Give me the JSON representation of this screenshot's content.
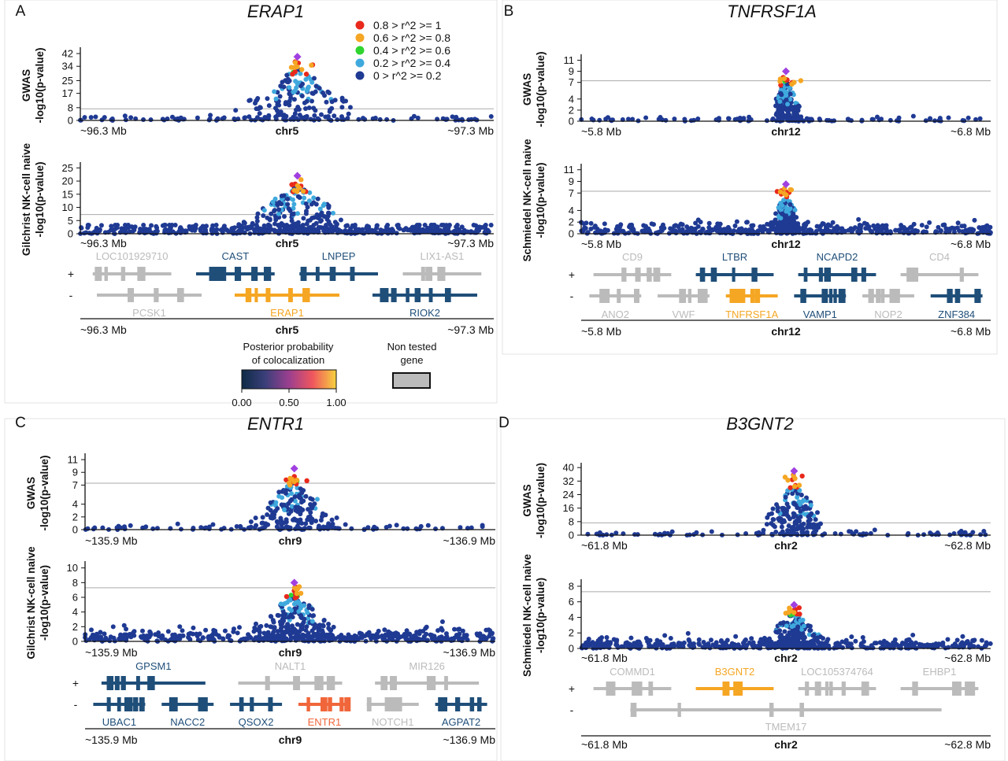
{
  "colors": {
    "r08_1": "#e8291b",
    "r06_08": "#f5a623",
    "r04_06": "#2fd42f",
    "r02_04": "#3fa9dd",
    "r0_02": "#1f3a93",
    "lead": "#a040e0",
    "tested_gene": "#1f4e79",
    "non_tested_gene": "#bbbbbb",
    "colocalized_gene": "#f5a623",
    "entr1_gene": "#f0663a",
    "threshold": "#aaaaaa"
  },
  "legend": {
    "items": [
      {
        "label": "0.8 > r^2  >= 1",
        "color": "#e8291b"
      },
      {
        "label": "0.6 > r^2  >= 0.8",
        "color": "#f5a623"
      },
      {
        "label": "0.4 > r^2  >= 0.6",
        "color": "#2fd42f"
      },
      {
        "label": "0.2 > r^2  >= 0.4",
        "color": "#3fa9dd"
      },
      {
        "label": "0 > r^2  >= 0.2",
        "color": "#1f3a93"
      }
    ],
    "colorbar_title_1": "Posterior probability",
    "colorbar_title_2": "of colocalization",
    "colorbar_ticks": [
      "0.00",
      "0.50",
      "1.00"
    ],
    "non_tested_1": "Non tested",
    "non_tested_2": "gene"
  },
  "chart_data": [
    {
      "panel": "A",
      "title": "ERAP1",
      "type": "scatter",
      "chrom": "chr5",
      "x_left": "~96.3 Mb",
      "x_right": "~97.3 Mb",
      "tracks": [
        {
          "ylabel_1": "GWAS",
          "ylabel_2": "-log10(p-value)",
          "yticks": [
            0,
            8,
            17,
            25,
            34,
            42
          ],
          "ymax": 44,
          "threshold": 7.3,
          "peak": 40,
          "lead_color": "#a040e0"
        },
        {
          "ylabel_1": "Gilchrist NK-cell naive",
          "ylabel_2": "-log10(p-value)",
          "yticks": [
            0,
            5,
            10,
            15,
            20,
            25
          ],
          "ymax": 26,
          "threshold": 7.3,
          "peak": 22
        }
      ],
      "genes_plus_labels": [
        {
          "text": "LOC101929710",
          "tested": false
        },
        {
          "text": "CAST",
          "tested": true
        },
        {
          "text": "LNPEP",
          "tested": true
        },
        {
          "text": "LIX1-AS1",
          "tested": false
        }
      ],
      "genes_minus_labels": [
        {
          "text": "PCSK1",
          "tested": false
        },
        {
          "text": "ERAP1",
          "tested": true,
          "coloc": true
        },
        {
          "text": "RIOK2",
          "tested": true
        }
      ]
    },
    {
      "panel": "B",
      "title": "TNFRSF1A",
      "type": "scatter",
      "chrom": "chr12",
      "x_left": "~5.8 Mb",
      "x_right": "~6.8 Mb",
      "tracks": [
        {
          "ylabel_1": "GWAS",
          "ylabel_2": "-log10(p-value)",
          "yticks": [
            0,
            2,
            4,
            7,
            9,
            11
          ],
          "ymax": 11.5,
          "threshold": 7.3,
          "peak": 9
        },
        {
          "ylabel_1": "Schmiedel NK-cell naive",
          "ylabel_2": "-log10(p-value)",
          "yticks": [
            0,
            2,
            4,
            7,
            9,
            11
          ],
          "ymax": 11.5,
          "threshold": 7.3,
          "peak": 8.5
        }
      ],
      "genes_plus_labels": [
        {
          "text": "CD9",
          "tested": false
        },
        {
          "text": "LTBR",
          "tested": true
        },
        {
          "text": "NCAPD2",
          "tested": true
        },
        {
          "text": "CD4",
          "tested": false
        }
      ],
      "genes_minus_labels": [
        {
          "text": "ANO2",
          "tested": false
        },
        {
          "text": "VWF",
          "tested": false
        },
        {
          "text": "TNFRSF1A",
          "tested": true,
          "coloc": true
        },
        {
          "text": "VAMP1",
          "tested": true
        },
        {
          "text": "NOP2",
          "tested": false
        },
        {
          "text": "ZNF384",
          "tested": true
        }
      ]
    },
    {
      "panel": "C",
      "title": "ENTR1",
      "type": "scatter",
      "chrom": "chr9",
      "x_left": "~135.9 Mb",
      "x_right": "~136.9 Mb",
      "tracks": [
        {
          "ylabel_1": "GWAS",
          "ylabel_2": "-log10(p-value)",
          "yticks": [
            0,
            2,
            4,
            7,
            9,
            11
          ],
          "ymax": 11.5,
          "threshold": 7.3,
          "peak": 9.6
        },
        {
          "ylabel_1": "Gilchrist NK-cell naive",
          "ylabel_2": "-log10(p-value)",
          "yticks": [
            0,
            2,
            4,
            6,
            8,
            10
          ],
          "ymax": 10.5,
          "threshold": 7.3,
          "peak": 8
        }
      ],
      "genes_plus_labels": [
        {
          "text": "GPSM1",
          "tested": true
        },
        {
          "text": "NALT1",
          "tested": false
        },
        {
          "text": "MIR126",
          "tested": false
        }
      ],
      "genes_minus_labels": [
        {
          "text": "UBAC1",
          "tested": true
        },
        {
          "text": "NACC2",
          "tested": true
        },
        {
          "text": "QSOX2",
          "tested": true
        },
        {
          "text": "ENTR1",
          "tested": true,
          "coloc": true
        },
        {
          "text": "NOTCH1",
          "tested": false
        },
        {
          "text": "AGPAT2",
          "tested": true
        }
      ]
    },
    {
      "panel": "D",
      "title": "B3GNT2",
      "type": "scatter",
      "chrom": "chr2",
      "x_left": "~61.8 Mb",
      "x_right": "~62.8 Mb",
      "tracks": [
        {
          "ylabel_1": "GWAS",
          "ylabel_2": "-log10(p-value)",
          "yticks": [
            0,
            8,
            16,
            24,
            32,
            40
          ],
          "ymax": 41,
          "threshold": 7.3,
          "peak": 38
        },
        {
          "ylabel_1": "Schmiedel NK-cell naive",
          "ylabel_2": "-log10(p-value)",
          "yticks": [
            0,
            2,
            4,
            6,
            8
          ],
          "ymax": 8.5,
          "threshold": 7.3,
          "peak": 5.6
        }
      ],
      "genes_plus_labels": [
        {
          "text": "COMMD1",
          "tested": false
        },
        {
          "text": "B3GNT2",
          "tested": true,
          "coloc": true
        },
        {
          "text": "LOC105374764",
          "tested": false
        },
        {
          "text": "EHBP1",
          "tested": false
        }
      ],
      "genes_minus_labels": [
        {
          "text": "TMEM17",
          "tested": false
        }
      ]
    }
  ]
}
